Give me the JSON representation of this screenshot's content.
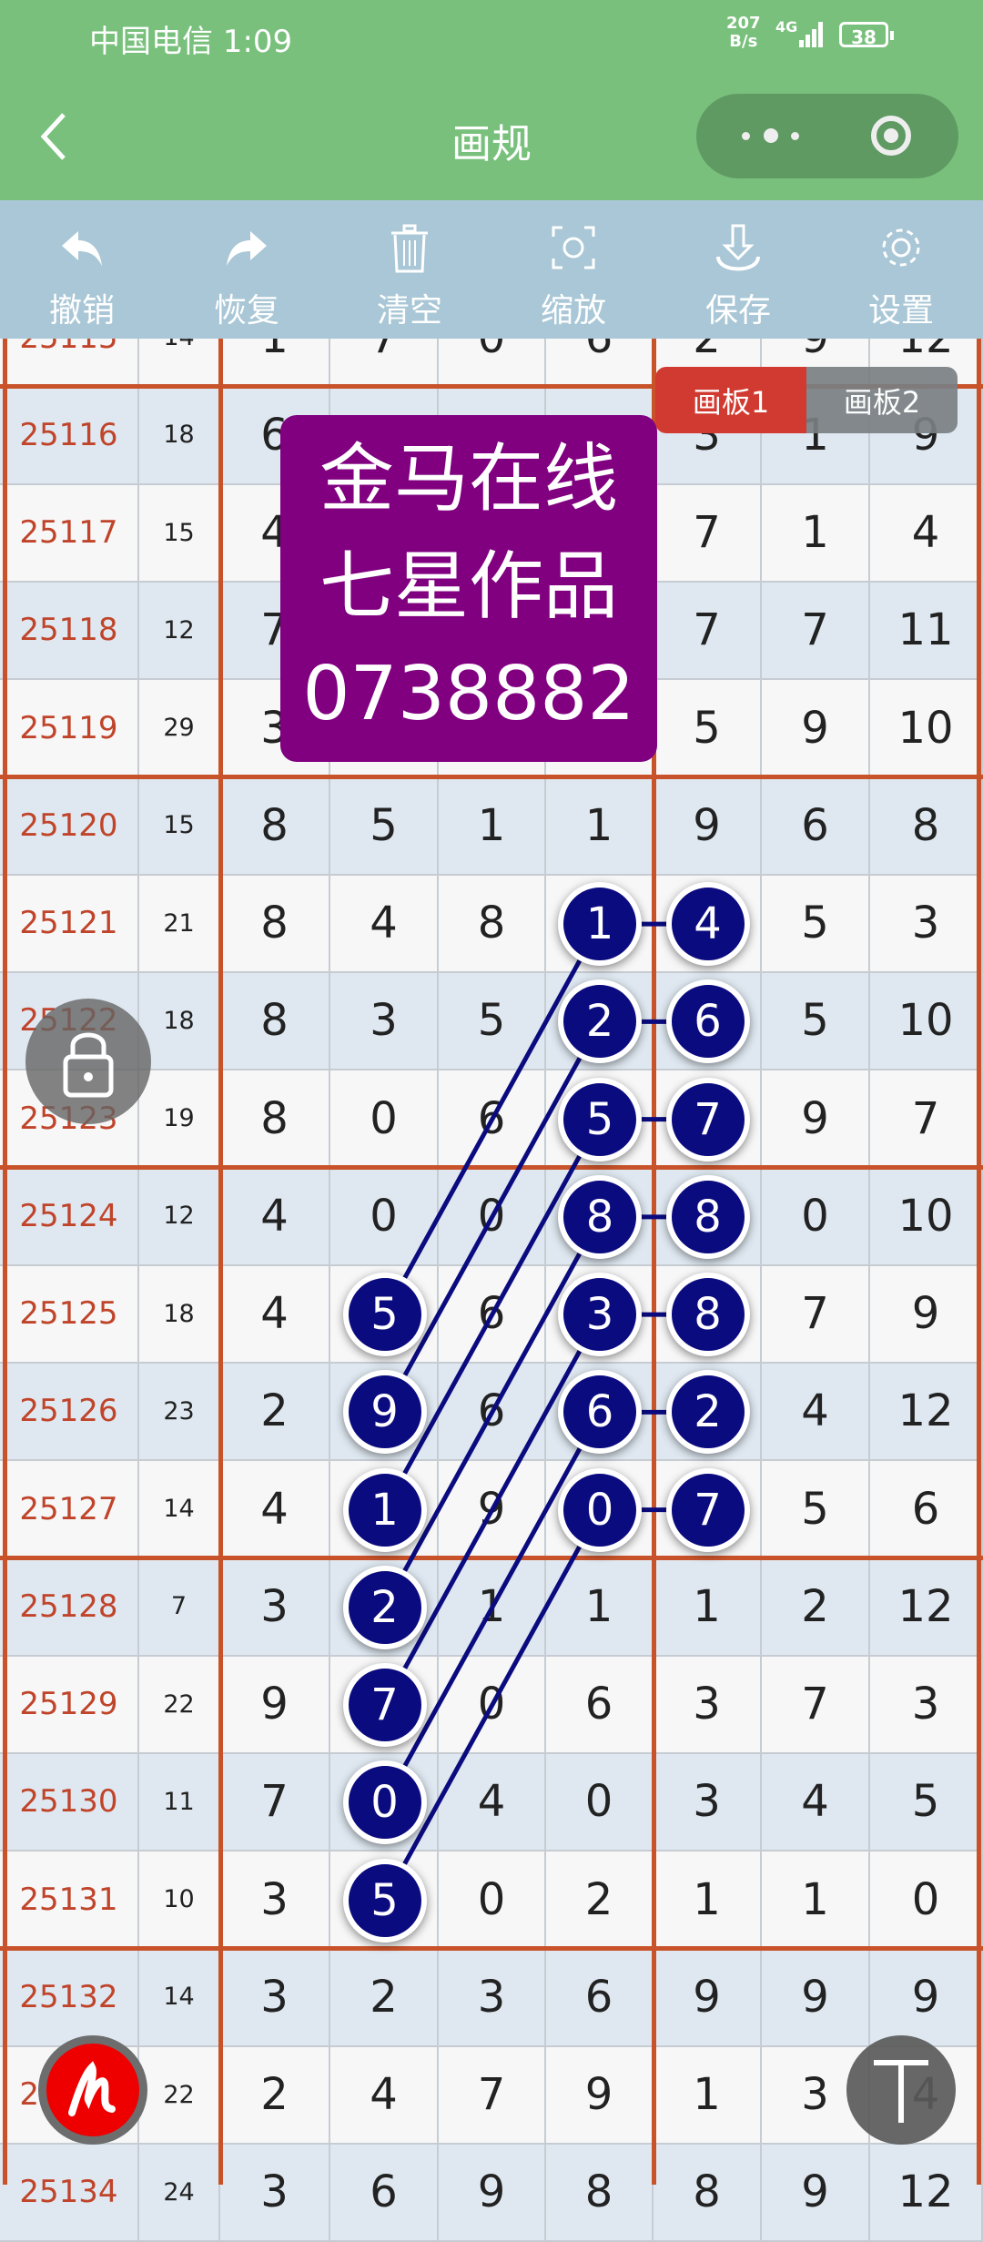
{
  "status_bar": {
    "carrier_time": "中国电信 1:09",
    "net_speed_value": "207",
    "net_speed_unit": "B/s",
    "network": "4G",
    "battery": "38"
  },
  "nav": {
    "title": "画规",
    "back_icon": "chevron-left-icon",
    "more_icon": "more-dots-icon",
    "close_icon": "target-circle-icon"
  },
  "toolbar": [
    {
      "label": "撤销",
      "icon": "undo-icon"
    },
    {
      "label": "恢复",
      "icon": "redo-icon"
    },
    {
      "label": "清空",
      "icon": "trash-icon"
    },
    {
      "label": "缩放",
      "icon": "zoom-fit-icon"
    },
    {
      "label": "保存",
      "icon": "download-icon"
    },
    {
      "label": "设置",
      "icon": "gear-icon"
    }
  ],
  "boards": [
    {
      "label": "画板1",
      "active": true
    },
    {
      "label": "画板2",
      "active": false
    }
  ],
  "watermark": {
    "line1": "金马在线",
    "line2": "七星作品",
    "line3": "0738882"
  },
  "colors": {
    "header": "#78c07c",
    "toolbar": "#a9c7d6",
    "ball": "#0b0b80",
    "grid_line": "#c8532a",
    "period_text": "#c0442a",
    "watermark": "#800080",
    "board_active": "#d13a30"
  },
  "table": {
    "rows": [
      {
        "period": "25115",
        "sum": "14",
        "digits": [
          "1",
          "7",
          "0",
          "6",
          "2",
          "9",
          "12"
        ]
      },
      {
        "period": "25116",
        "sum": "18",
        "digits": [
          "6",
          "",
          "",
          "",
          "3",
          "1",
          "9"
        ]
      },
      {
        "period": "25117",
        "sum": "15",
        "digits": [
          "4",
          "",
          "",
          "",
          "7",
          "1",
          "4"
        ]
      },
      {
        "period": "25118",
        "sum": "12",
        "digits": [
          "7",
          "",
          "",
          "",
          "7",
          "7",
          "11"
        ]
      },
      {
        "period": "25119",
        "sum": "29",
        "digits": [
          "3",
          "",
          "",
          "",
          "5",
          "9",
          "10"
        ]
      },
      {
        "period": "25120",
        "sum": "15",
        "digits": [
          "8",
          "5",
          "1",
          "1",
          "9",
          "6",
          "8"
        ]
      },
      {
        "period": "25121",
        "sum": "21",
        "digits": [
          "8",
          "4",
          "8",
          "1",
          "4",
          "5",
          "3"
        ]
      },
      {
        "period": "25122",
        "sum": "18",
        "digits": [
          "8",
          "3",
          "5",
          "2",
          "6",
          "5",
          "10"
        ]
      },
      {
        "period": "25123",
        "sum": "19",
        "digits": [
          "8",
          "0",
          "6",
          "5",
          "7",
          "9",
          "7"
        ]
      },
      {
        "period": "25124",
        "sum": "12",
        "digits": [
          "4",
          "0",
          "0",
          "8",
          "8",
          "0",
          "10"
        ]
      },
      {
        "period": "25125",
        "sum": "18",
        "digits": [
          "4",
          "5",
          "6",
          "3",
          "8",
          "7",
          "9"
        ]
      },
      {
        "period": "25126",
        "sum": "23",
        "digits": [
          "2",
          "9",
          "6",
          "6",
          "2",
          "4",
          "12"
        ]
      },
      {
        "period": "25127",
        "sum": "14",
        "digits": [
          "4",
          "1",
          "9",
          "0",
          "7",
          "5",
          "6"
        ]
      },
      {
        "period": "25128",
        "sum": "7",
        "digits": [
          "3",
          "2",
          "1",
          "1",
          "1",
          "2",
          "12"
        ]
      },
      {
        "period": "25129",
        "sum": "22",
        "digits": [
          "9",
          "7",
          "0",
          "6",
          "3",
          "7",
          "3"
        ]
      },
      {
        "period": "25130",
        "sum": "11",
        "digits": [
          "7",
          "0",
          "4",
          "0",
          "3",
          "4",
          "5"
        ]
      },
      {
        "period": "25131",
        "sum": "10",
        "digits": [
          "3",
          "5",
          "0",
          "2",
          "1",
          "1",
          "0"
        ]
      },
      {
        "period": "25132",
        "sum": "14",
        "digits": [
          "3",
          "2",
          "3",
          "6",
          "9",
          "9",
          "9"
        ]
      },
      {
        "period": "25133",
        "sum": "22",
        "digits": [
          "2",
          "4",
          "7",
          "9",
          "1",
          "3",
          "4"
        ]
      },
      {
        "period": "25134",
        "sum": "24",
        "digits": [
          "3",
          "6",
          "9",
          "8",
          "8",
          "9",
          "12"
        ]
      }
    ],
    "marked": [
      {
        "period": "25121",
        "cols": [
          4,
          5
        ]
      },
      {
        "period": "25122",
        "cols": [
          4,
          5
        ]
      },
      {
        "period": "25123",
        "cols": [
          4,
          5
        ]
      },
      {
        "period": "25124",
        "cols": [
          4,
          5
        ]
      },
      {
        "period": "25125",
        "cols": [
          2,
          4,
          5
        ]
      },
      {
        "period": "25126",
        "cols": [
          2,
          4,
          5
        ]
      },
      {
        "period": "25127",
        "cols": [
          2,
          4,
          5
        ]
      },
      {
        "period": "25128",
        "cols": [
          2
        ]
      },
      {
        "period": "25129",
        "cols": [
          2
        ]
      },
      {
        "period": "25130",
        "cols": [
          2
        ]
      },
      {
        "period": "25131",
        "cols": [
          2
        ]
      }
    ],
    "links": [
      {
        "from": [
          "25121",
          4
        ],
        "to": [
          "25125",
          2
        ]
      },
      {
        "from": [
          "25122",
          4
        ],
        "to": [
          "25126",
          2
        ]
      },
      {
        "from": [
          "25123",
          4
        ],
        "to": [
          "25127",
          2
        ]
      },
      {
        "from": [
          "25124",
          4
        ],
        "to": [
          "25128",
          2
        ]
      },
      {
        "from": [
          "25125",
          4
        ],
        "to": [
          "25129",
          2
        ]
      },
      {
        "from": [
          "25126",
          4
        ],
        "to": [
          "25130",
          2
        ]
      },
      {
        "from": [
          "25127",
          4
        ],
        "to": [
          "25131",
          2
        ]
      },
      {
        "from": [
          "25121",
          4
        ],
        "to": [
          "25121",
          5
        ]
      },
      {
        "from": [
          "25122",
          4
        ],
        "to": [
          "25122",
          5
        ]
      },
      {
        "from": [
          "25123",
          4
        ],
        "to": [
          "25123",
          5
        ]
      },
      {
        "from": [
          "25124",
          4
        ],
        "to": [
          "25124",
          5
        ]
      },
      {
        "from": [
          "25125",
          4
        ],
        "to": [
          "25125",
          5
        ]
      },
      {
        "from": [
          "25126",
          4
        ],
        "to": [
          "25126",
          5
        ]
      },
      {
        "from": [
          "25127",
          4
        ],
        "to": [
          "25127",
          5
        ]
      }
    ]
  },
  "floating": {
    "lock_icon": "lock-icon",
    "pen_icon": "pen-signature-icon",
    "text_icon": "text-t-icon"
  }
}
